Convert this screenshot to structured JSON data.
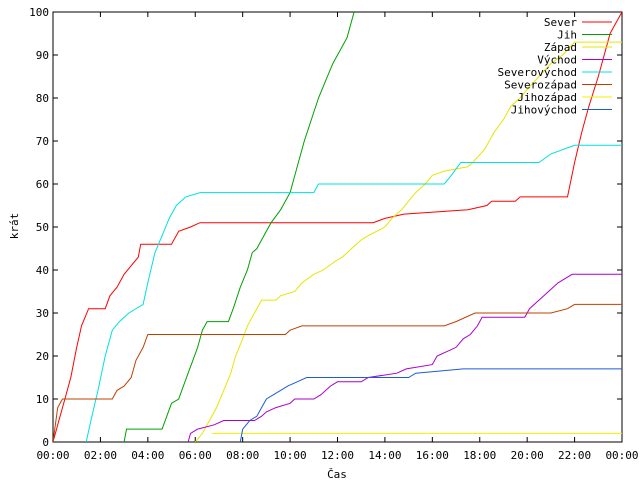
{
  "chart_data": {
    "type": "line",
    "xlabel": "Čas",
    "ylabel": "krát",
    "xlim": [
      0,
      24
    ],
    "ylim": [
      0,
      100
    ],
    "x_ticks": [
      {
        "value": 0,
        "label": "00:00"
      },
      {
        "value": 2,
        "label": "02:00"
      },
      {
        "value": 4,
        "label": "04:00"
      },
      {
        "value": 6,
        "label": "06:00"
      },
      {
        "value": 8,
        "label": "08:00"
      },
      {
        "value": 10,
        "label": "10:00"
      },
      {
        "value": 12,
        "label": "12:00"
      },
      {
        "value": 14,
        "label": "14:00"
      },
      {
        "value": 16,
        "label": "16:00"
      },
      {
        "value": 18,
        "label": "18:00"
      },
      {
        "value": 20,
        "label": "20:00"
      },
      {
        "value": 22,
        "label": "22:00"
      },
      {
        "value": 24,
        "label": "00:00"
      }
    ],
    "y_ticks": [
      0,
      10,
      20,
      30,
      40,
      50,
      60,
      70,
      80,
      90,
      100
    ],
    "grid": false,
    "legend_position": "top-right",
    "series": [
      {
        "name": "Sever",
        "color": "#ff0000",
        "points": [
          [
            0.0,
            0
          ],
          [
            0.25,
            5
          ],
          [
            0.5,
            10
          ],
          [
            0.75,
            15
          ],
          [
            1.0,
            22
          ],
          [
            1.2,
            27
          ],
          [
            1.5,
            31
          ],
          [
            2.2,
            31
          ],
          [
            2.4,
            34
          ],
          [
            2.7,
            36
          ],
          [
            3.0,
            39
          ],
          [
            3.3,
            41
          ],
          [
            3.6,
            43
          ],
          [
            3.7,
            46
          ],
          [
            5.0,
            46
          ],
          [
            5.3,
            49
          ],
          [
            5.8,
            50
          ],
          [
            6.2,
            51
          ],
          [
            13.5,
            51
          ],
          [
            14.0,
            52
          ],
          [
            14.8,
            53
          ],
          [
            17.5,
            54
          ],
          [
            18.3,
            55
          ],
          [
            18.5,
            56
          ],
          [
            19.5,
            56
          ],
          [
            19.7,
            57
          ],
          [
            21.7,
            57
          ],
          [
            22.0,
            65
          ],
          [
            22.3,
            72
          ],
          [
            22.6,
            78
          ],
          [
            23.0,
            85
          ],
          [
            23.5,
            95
          ],
          [
            24.0,
            100
          ]
        ]
      },
      {
        "name": "Jih",
        "color": "#00a000",
        "points": [
          [
            3.0,
            0
          ],
          [
            3.1,
            3
          ],
          [
            4.6,
            3
          ],
          [
            4.8,
            6
          ],
          [
            5.0,
            9
          ],
          [
            5.3,
            10
          ],
          [
            5.5,
            13
          ],
          [
            5.7,
            16
          ],
          [
            5.9,
            19
          ],
          [
            6.1,
            22
          ],
          [
            6.3,
            26
          ],
          [
            6.5,
            28
          ],
          [
            7.4,
            28
          ],
          [
            7.6,
            31
          ],
          [
            7.9,
            36
          ],
          [
            8.2,
            40
          ],
          [
            8.4,
            44
          ],
          [
            8.6,
            45
          ],
          [
            8.8,
            47
          ],
          [
            9.2,
            51
          ],
          [
            9.6,
            54
          ],
          [
            10.0,
            58
          ],
          [
            10.3,
            64
          ],
          [
            10.6,
            70
          ],
          [
            10.9,
            75
          ],
          [
            11.2,
            80
          ],
          [
            11.5,
            84
          ],
          [
            11.8,
            88
          ],
          [
            12.1,
            91
          ],
          [
            12.4,
            94
          ],
          [
            12.7,
            100
          ]
        ]
      },
      {
        "name": "Západ",
        "color": "#e6e600",
        "points": [
          [
            6.0,
            0
          ],
          [
            6.3,
            2
          ],
          [
            6.6,
            5
          ],
          [
            6.9,
            8
          ],
          [
            7.2,
            12
          ],
          [
            7.5,
            16
          ],
          [
            7.7,
            20
          ],
          [
            8.0,
            24
          ],
          [
            8.2,
            27
          ],
          [
            8.5,
            30
          ],
          [
            8.8,
            33
          ],
          [
            9.4,
            33
          ],
          [
            9.6,
            34
          ],
          [
            10.2,
            35
          ],
          [
            10.5,
            37
          ],
          [
            11.0,
            39
          ],
          [
            11.4,
            40
          ],
          [
            11.9,
            42
          ],
          [
            12.2,
            43
          ],
          [
            12.6,
            45
          ],
          [
            13.0,
            47
          ],
          [
            13.3,
            48
          ],
          [
            14.0,
            50
          ],
          [
            14.3,
            52
          ],
          [
            14.7,
            54
          ],
          [
            15.0,
            56
          ],
          [
            15.3,
            58
          ],
          [
            15.7,
            60
          ],
          [
            16.0,
            62
          ],
          [
            16.5,
            63
          ],
          [
            17.5,
            64
          ],
          [
            17.7,
            65
          ],
          [
            18.2,
            68
          ],
          [
            18.6,
            72
          ],
          [
            19.0,
            75
          ],
          [
            19.3,
            78
          ],
          [
            19.7,
            80
          ],
          [
            20.0,
            82
          ],
          [
            20.5,
            85
          ],
          [
            21.0,
            88
          ],
          [
            21.5,
            90
          ],
          [
            22.0,
            93
          ],
          [
            24.0,
            93
          ]
        ]
      },
      {
        "name": "Východ",
        "color": "#aa00cc",
        "points": [
          [
            5.7,
            0
          ],
          [
            5.8,
            2
          ],
          [
            6.1,
            3
          ],
          [
            6.8,
            4
          ],
          [
            7.2,
            5
          ],
          [
            8.5,
            5
          ],
          [
            8.8,
            6
          ],
          [
            9.0,
            7
          ],
          [
            9.4,
            8
          ],
          [
            10.0,
            9
          ],
          [
            10.2,
            10
          ],
          [
            11.0,
            10
          ],
          [
            11.3,
            11
          ],
          [
            11.7,
            13
          ],
          [
            12.0,
            14
          ],
          [
            13.0,
            14
          ],
          [
            13.3,
            15
          ],
          [
            14.5,
            16
          ],
          [
            14.9,
            17
          ],
          [
            16.0,
            18
          ],
          [
            16.2,
            20
          ],
          [
            16.6,
            21
          ],
          [
            17.0,
            22
          ],
          [
            17.3,
            24
          ],
          [
            17.6,
            25
          ],
          [
            17.9,
            27
          ],
          [
            18.1,
            29
          ],
          [
            19.9,
            29
          ],
          [
            20.1,
            31
          ],
          [
            20.5,
            33
          ],
          [
            20.9,
            35
          ],
          [
            21.3,
            37
          ],
          [
            21.6,
            38
          ],
          [
            21.9,
            39
          ],
          [
            24.0,
            39
          ]
        ]
      },
      {
        "name": "Severovýchod",
        "color": "#00e0e0",
        "points": [
          [
            1.4,
            0
          ],
          [
            1.6,
            5
          ],
          [
            1.9,
            12
          ],
          [
            2.2,
            20
          ],
          [
            2.5,
            26
          ],
          [
            2.8,
            28
          ],
          [
            3.2,
            30
          ],
          [
            3.8,
            32
          ],
          [
            4.0,
            37
          ],
          [
            4.3,
            44
          ],
          [
            4.6,
            48
          ],
          [
            4.9,
            52
          ],
          [
            5.2,
            55
          ],
          [
            5.6,
            57
          ],
          [
            6.2,
            58
          ],
          [
            11.0,
            58
          ],
          [
            11.2,
            60
          ],
          [
            16.5,
            60
          ],
          [
            16.8,
            62
          ],
          [
            17.2,
            65
          ],
          [
            20.5,
            65
          ],
          [
            21.0,
            67
          ],
          [
            22.0,
            69
          ],
          [
            24.0,
            69
          ]
        ]
      },
      {
        "name": "Severozápad",
        "color": "#c04000",
        "points": [
          [
            0.0,
            0
          ],
          [
            0.2,
            8
          ],
          [
            0.4,
            10
          ],
          [
            2.5,
            10
          ],
          [
            2.7,
            12
          ],
          [
            3.0,
            13
          ],
          [
            3.3,
            15
          ],
          [
            3.5,
            19
          ],
          [
            3.8,
            22
          ],
          [
            4.0,
            25
          ],
          [
            9.8,
            25
          ],
          [
            10.0,
            26
          ],
          [
            10.5,
            27
          ],
          [
            16.5,
            27
          ],
          [
            17.0,
            28
          ],
          [
            17.8,
            30
          ],
          [
            21.0,
            30
          ],
          [
            21.7,
            31
          ],
          [
            22.0,
            32
          ],
          [
            24.0,
            32
          ]
        ]
      },
      {
        "name": "Jihozápad",
        "color": "#f0f000",
        "points": [
          [
            6.7,
            2
          ],
          [
            24.0,
            2
          ]
        ]
      },
      {
        "name": "Jihovýchod",
        "color": "#1e5ad8",
        "points": [
          [
            7.9,
            0
          ],
          [
            8.0,
            3
          ],
          [
            8.3,
            5
          ],
          [
            8.6,
            6
          ],
          [
            8.8,
            8
          ],
          [
            9.0,
            10
          ],
          [
            9.3,
            11
          ],
          [
            9.6,
            12
          ],
          [
            9.9,
            13
          ],
          [
            10.3,
            14
          ],
          [
            10.7,
            15
          ],
          [
            15.0,
            15
          ],
          [
            15.3,
            16
          ],
          [
            17.3,
            17
          ],
          [
            24.0,
            17
          ]
        ]
      }
    ]
  }
}
